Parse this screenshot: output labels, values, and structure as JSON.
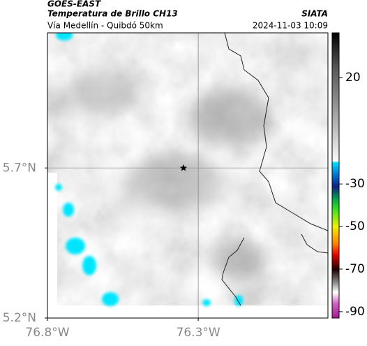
{
  "header": {
    "title": "GOES-EAST",
    "subtitle": "Temperatura de Brillo CH13",
    "source": "SIATA",
    "region": "Vía Medellín - Quibdó 50km",
    "timestamp": "2024-11-03 10:09"
  },
  "map": {
    "xlim": [
      -76.8,
      -75.87
    ],
    "ylim": [
      5.2,
      6.15
    ],
    "xticks": [
      {
        "value": -76.8,
        "label": "76.8°W"
      },
      {
        "value": -76.3,
        "label": "76.3°W"
      }
    ],
    "yticks": [
      {
        "value": 5.2,
        "label": "5.2°N"
      },
      {
        "value": 5.7,
        "label": "5.7°N"
      }
    ],
    "grid": true
  },
  "colorbar": {
    "lim": [
      -93,
      41
    ],
    "ticks": [
      20,
      -30,
      -50,
      -70,
      -90
    ]
  }
}
